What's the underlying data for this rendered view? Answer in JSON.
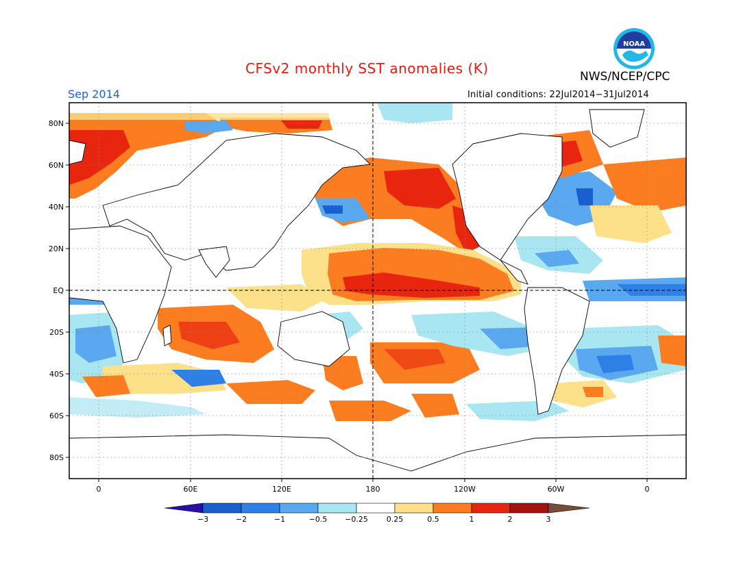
{
  "header": {
    "title": "CFSv2 monthly SST anomalies (K)",
    "organization": "NWS/NCEP/CPC",
    "logo_text": "NOAA",
    "valid_month": "Sep 2014",
    "initial_conditions": "Initial conditions: 22Jul2014−31Jul2014"
  },
  "map": {
    "lat_labels": [
      "80N",
      "60N",
      "40N",
      "20N",
      "EQ",
      "20S",
      "40S",
      "60S",
      "80S"
    ],
    "lon_labels": [
      "0",
      "60E",
      "120E",
      "180",
      "120W",
      "60W",
      "0"
    ],
    "grid": "dotted",
    "reference_lines": [
      "equator",
      "dateline"
    ]
  },
  "colorbar": {
    "labels": [
      "−3",
      "−2",
      "−1",
      "−0.5",
      "−0.25",
      "0.25",
      "0.5",
      "1",
      "2",
      "3"
    ],
    "colors": [
      "#2a0ea8",
      "#1a5fcf",
      "#2e80e6",
      "#5aa8f0",
      "#a8e6f2",
      "#ffffff",
      "#fde08a",
      "#fb7d1f",
      "#e8260f",
      "#a5110d",
      "#7a4a3c"
    ]
  },
  "colors": {
    "title": "#e8190f",
    "valid_month": "#1c5ee6"
  }
}
